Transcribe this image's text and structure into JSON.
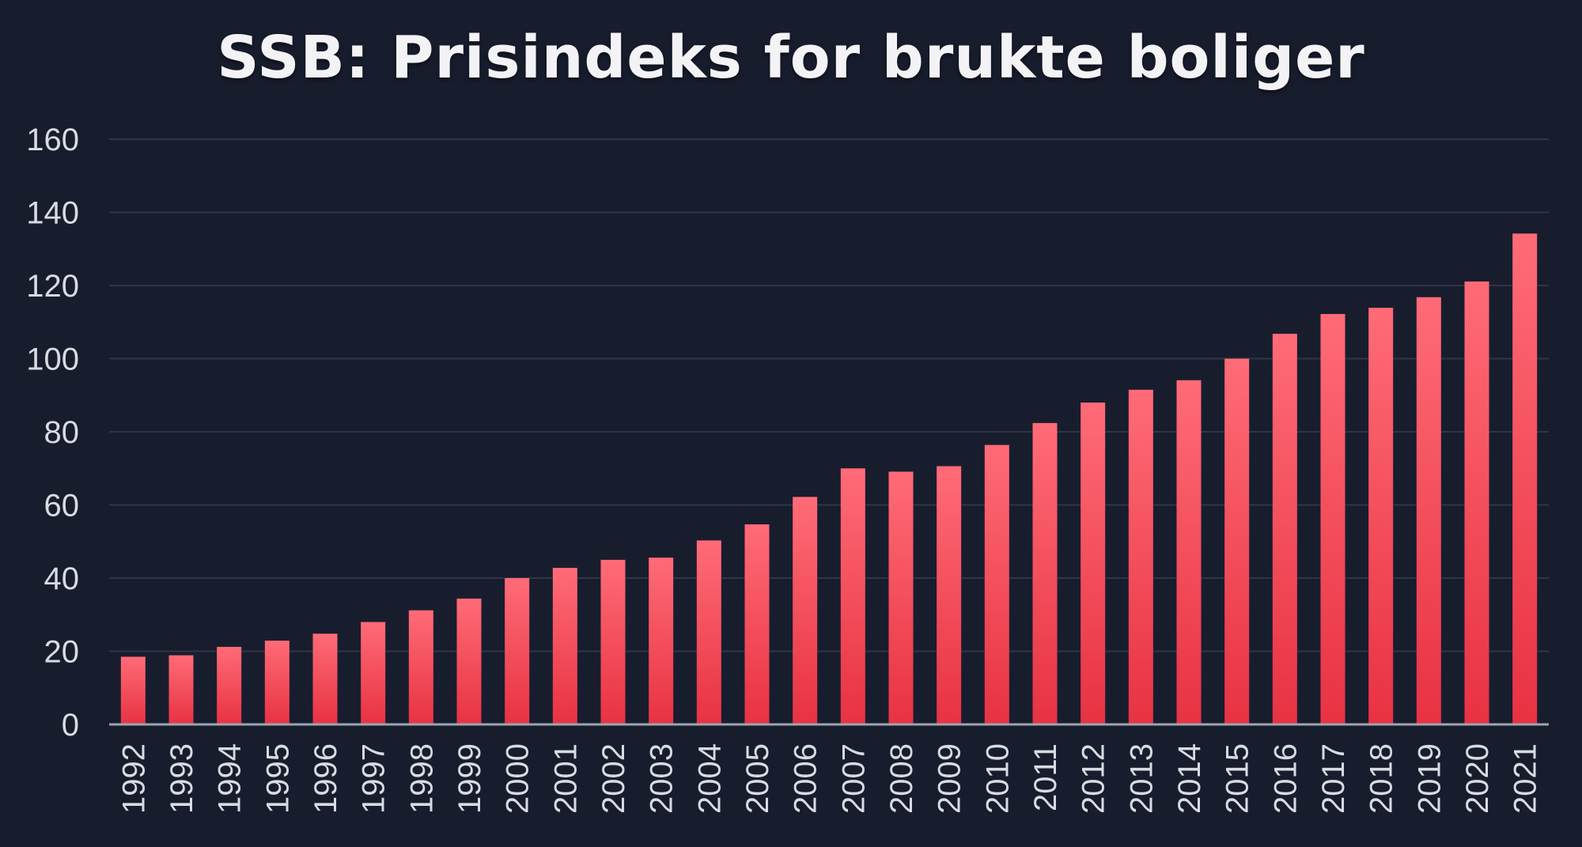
{
  "chart_data": {
    "type": "bar",
    "title": "SSB: Prisindeks for brukte boliger",
    "xlabel": "",
    "ylabel": "",
    "ylim": [
      0,
      160
    ],
    "yticks": [
      0,
      20,
      40,
      60,
      80,
      100,
      120,
      140,
      160
    ],
    "grid": true,
    "categories": [
      "1992",
      "1993",
      "1994",
      "1995",
      "1996",
      "1997",
      "1998",
      "1999",
      "2000",
      "2001",
      "2002",
      "2003",
      "2004",
      "2005",
      "2006",
      "2007",
      "2008",
      "2009",
      "2010",
      "2011",
      "2012",
      "2013",
      "2014",
      "2015",
      "2016",
      "2017",
      "2018",
      "2019",
      "2020",
      "2021"
    ],
    "values": [
      18.5,
      18.9,
      21.2,
      22.9,
      24.8,
      28.0,
      31.2,
      34.4,
      40.0,
      42.8,
      45.0,
      45.6,
      50.3,
      54.7,
      62.2,
      70.0,
      69.1,
      70.6,
      76.4,
      82.4,
      88.0,
      91.5,
      94.1,
      100.0,
      106.8,
      112.2,
      113.9,
      116.8,
      121.1,
      134.2
    ],
    "colors": {
      "background": "#181d2e",
      "bar_top": "#ff6b77",
      "bar_bottom": "#e83242",
      "grid": "#2f3547",
      "axis": "#9ea3b3",
      "text": "#d9dbe2"
    }
  }
}
